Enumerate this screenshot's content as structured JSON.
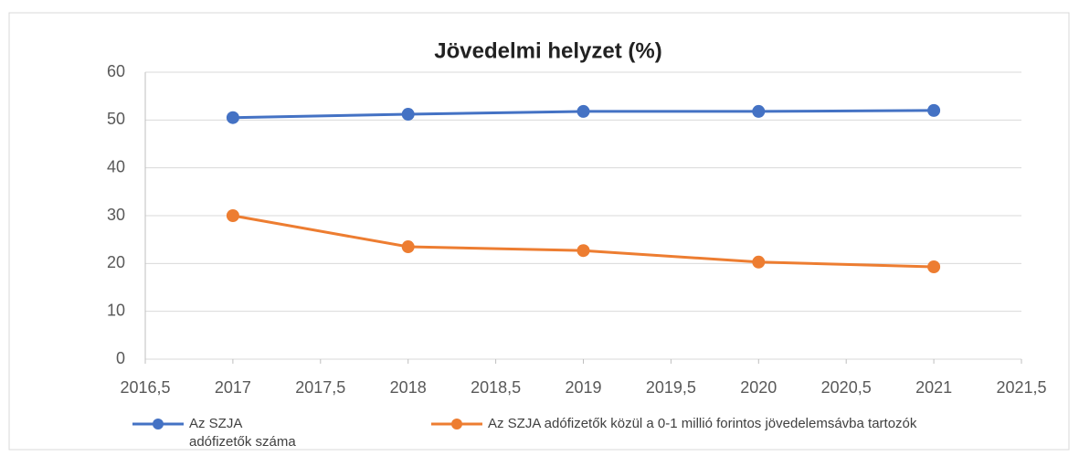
{
  "chart_data": {
    "type": "line",
    "title": "Jövedelmi helyzet (%)",
    "x": [
      2017,
      2018,
      2019,
      2020,
      2021
    ],
    "series": [
      {
        "name": "Az SZJA adófizetők száma",
        "color": "#4472c4",
        "values": [
          50.5,
          51.2,
          51.8,
          51.8,
          52
        ]
      },
      {
        "name": "Az SZJA adófizetők közül a 0-1 millió forintos jövedelemsávba tartozók",
        "color": "#ed7d31",
        "values": [
          30,
          23.5,
          22.7,
          20.3,
          19.3
        ]
      }
    ],
    "xlim": [
      2016.5,
      2021.5
    ],
    "xticks": [
      {
        "value": 2016.5,
        "label": "2016,5"
      },
      2017,
      {
        "value": 2017.5,
        "label": "2017,5"
      },
      2018,
      {
        "value": 2018.5,
        "label": "2018,5"
      },
      2019,
      {
        "value": 2019.5,
        "label": "2019,5"
      },
      2020,
      {
        "value": 2020.5,
        "label": "2020,5"
      },
      2021,
      {
        "value": 2021.5,
        "label": "2021,5"
      }
    ],
    "ylim": [
      0,
      60
    ],
    "yticks": [
      0,
      10,
      20,
      30,
      40,
      50,
      60
    ],
    "grid": true,
    "legend": "bottom"
  }
}
